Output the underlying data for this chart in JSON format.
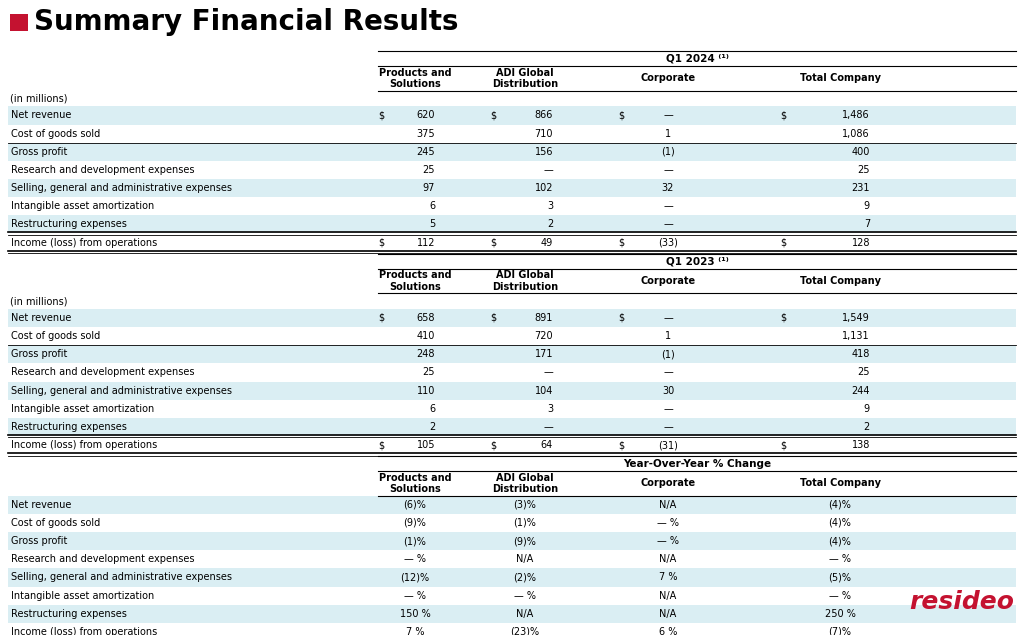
{
  "title": "Summary Financial Results",
  "bg_color": "#ffffff",
  "row_alt_color": "#daeef3",
  "accent_color": "#c41230",
  "sections": [
    {
      "period_label": "Q1 2024 ⁽¹⁾",
      "subheader": "(in millions)",
      "rows": [
        {
          "label": "Net revenue",
          "ps": "620",
          "adi": "866",
          "corp": "—",
          "total": "1,486",
          "highlight": true,
          "dollar": true,
          "double_top": false,
          "single_bot": false,
          "double_bot": false
        },
        {
          "label": "Cost of goods sold",
          "ps": "375",
          "adi": "710",
          "corp": "1",
          "total": "1,086",
          "highlight": false,
          "dollar": false,
          "double_top": false,
          "single_bot": true,
          "double_bot": false
        },
        {
          "label": "Gross profit",
          "ps": "245",
          "adi": "156",
          "corp": "(1)",
          "total": "400",
          "highlight": true,
          "dollar": false,
          "double_top": false,
          "single_bot": false,
          "double_bot": false
        },
        {
          "label": "Research and development expenses",
          "ps": "25",
          "adi": "—",
          "corp": "—",
          "total": "25",
          "highlight": false,
          "dollar": false,
          "double_top": false,
          "single_bot": false,
          "double_bot": false
        },
        {
          "label": "Selling, general and administrative expenses",
          "ps": "97",
          "adi": "102",
          "corp": "32",
          "total": "231",
          "highlight": true,
          "dollar": false,
          "double_top": false,
          "single_bot": false,
          "double_bot": false
        },
        {
          "label": "Intangible asset amortization",
          "ps": "6",
          "adi": "3",
          "corp": "—",
          "total": "9",
          "highlight": false,
          "dollar": false,
          "double_top": false,
          "single_bot": false,
          "double_bot": false
        },
        {
          "label": "Restructuring expenses",
          "ps": "5",
          "adi": "2",
          "corp": "—",
          "total": "7",
          "highlight": true,
          "dollar": false,
          "double_top": false,
          "single_bot": false,
          "double_bot": false
        },
        {
          "label": "Income (loss) from operations",
          "ps": "112",
          "adi": "49",
          "corp": "(33)",
          "total": "128",
          "highlight": false,
          "dollar": true,
          "double_top": true,
          "single_bot": false,
          "double_bot": true
        }
      ]
    },
    {
      "period_label": "Q1 2023 ⁽¹⁾",
      "subheader": "(in millions)",
      "rows": [
        {
          "label": "Net revenue",
          "ps": "658",
          "adi": "891",
          "corp": "—",
          "total": "1,549",
          "highlight": true,
          "dollar": true,
          "double_top": false,
          "single_bot": false,
          "double_bot": false
        },
        {
          "label": "Cost of goods sold",
          "ps": "410",
          "adi": "720",
          "corp": "1",
          "total": "1,131",
          "highlight": false,
          "dollar": false,
          "double_top": false,
          "single_bot": true,
          "double_bot": false
        },
        {
          "label": "Gross profit",
          "ps": "248",
          "adi": "171",
          "corp": "(1)",
          "total": "418",
          "highlight": true,
          "dollar": false,
          "double_top": false,
          "single_bot": false,
          "double_bot": false
        },
        {
          "label": "Research and development expenses",
          "ps": "25",
          "adi": "—",
          "corp": "—",
          "total": "25",
          "highlight": false,
          "dollar": false,
          "double_top": false,
          "single_bot": false,
          "double_bot": false
        },
        {
          "label": "Selling, general and administrative expenses",
          "ps": "110",
          "adi": "104",
          "corp": "30",
          "total": "244",
          "highlight": true,
          "dollar": false,
          "double_top": false,
          "single_bot": false,
          "double_bot": false
        },
        {
          "label": "Intangible asset amortization",
          "ps": "6",
          "adi": "3",
          "corp": "—",
          "total": "9",
          "highlight": false,
          "dollar": false,
          "double_top": false,
          "single_bot": false,
          "double_bot": false
        },
        {
          "label": "Restructuring expenses",
          "ps": "2",
          "adi": "—",
          "corp": "—",
          "total": "2",
          "highlight": true,
          "dollar": false,
          "double_top": false,
          "single_bot": false,
          "double_bot": false
        },
        {
          "label": "Income (loss) from operations",
          "ps": "105",
          "adi": "64",
          "corp": "(31)",
          "total": "138",
          "highlight": false,
          "dollar": true,
          "double_top": true,
          "single_bot": false,
          "double_bot": true
        }
      ]
    },
    {
      "period_label": "Year-Over-Year % Change",
      "subheader": null,
      "rows": [
        {
          "label": "Net revenue",
          "ps": "(6)%",
          "adi": "(3)%",
          "corp": "N/A",
          "total": "(4)%",
          "highlight": true,
          "dollar": false,
          "double_top": false,
          "single_bot": false,
          "double_bot": false
        },
        {
          "label": "Cost of goods sold",
          "ps": "(9)%",
          "adi": "(1)%",
          "corp": "— %",
          "total": "(4)%",
          "highlight": false,
          "dollar": false,
          "double_top": false,
          "single_bot": false,
          "double_bot": false
        },
        {
          "label": "Gross profit",
          "ps": "(1)%",
          "adi": "(9)%",
          "corp": "— %",
          "total": "(4)%",
          "highlight": true,
          "dollar": false,
          "double_top": false,
          "single_bot": false,
          "double_bot": false
        },
        {
          "label": "Research and development expenses",
          "ps": "— %",
          "adi": "N/A",
          "corp": "N/A",
          "total": "— %",
          "highlight": false,
          "dollar": false,
          "double_top": false,
          "single_bot": false,
          "double_bot": false
        },
        {
          "label": "Selling, general and administrative expenses",
          "ps": "(12)%",
          "adi": "(2)%",
          "corp": "7 %",
          "total": "(5)%",
          "highlight": true,
          "dollar": false,
          "double_top": false,
          "single_bot": false,
          "double_bot": false
        },
        {
          "label": "Intangible asset amortization",
          "ps": "— %",
          "adi": "— %",
          "corp": "N/A",
          "total": "— %",
          "highlight": false,
          "dollar": false,
          "double_top": false,
          "single_bot": false,
          "double_bot": false
        },
        {
          "label": "Restructuring expenses",
          "ps": "150 %",
          "adi": "N/A",
          "corp": "N/A",
          "total": "250 %",
          "highlight": true,
          "dollar": false,
          "double_top": false,
          "single_bot": false,
          "double_bot": false
        },
        {
          "label": "Income (loss) from operations",
          "ps": "7 %",
          "adi": "(23)%",
          "corp": "6 %",
          "total": "(7)%",
          "highlight": false,
          "dollar": false,
          "double_top": false,
          "single_bot": false,
          "double_bot": false
        }
      ]
    }
  ]
}
